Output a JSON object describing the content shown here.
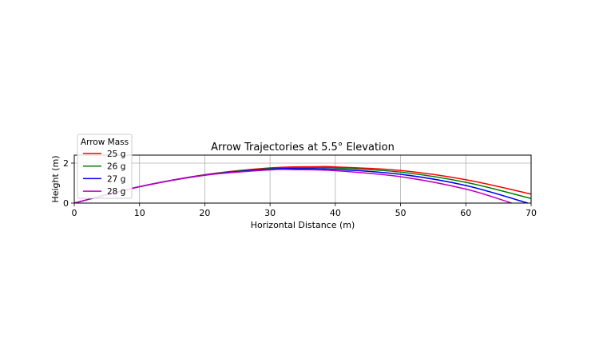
{
  "chart_data": {
    "type": "line",
    "title": "Arrow Trajectories at 5.5° Elevation",
    "xlabel": "Horizontal Distance (m)",
    "ylabel": "Height (m)",
    "xlim": [
      0,
      70
    ],
    "ylim": [
      0,
      2.4
    ],
    "xticks": [
      0,
      10,
      20,
      30,
      40,
      50,
      60,
      70
    ],
    "yticks": [
      0,
      2
    ],
    "grid": true,
    "legend": {
      "title": "Arrow Mass",
      "placement": "upper-left, outside axes"
    },
    "series": [
      {
        "name": "25 g",
        "color": "#ff0000",
        "x": [
          0,
          10,
          20,
          30,
          37,
          40,
          50,
          60,
          70
        ],
        "y": [
          0,
          0.82,
          1.42,
          1.76,
          1.82,
          1.81,
          1.63,
          1.17,
          0.45
        ]
      },
      {
        "name": "26 g",
        "color": "#008000",
        "x": [
          0,
          10,
          20,
          30,
          36,
          40,
          50,
          60,
          70
        ],
        "y": [
          0,
          0.82,
          1.41,
          1.73,
          1.77,
          1.76,
          1.55,
          1.04,
          0.23
        ]
      },
      {
        "name": "27 g",
        "color": "#0000ff",
        "x": [
          0,
          10,
          20,
          30,
          35,
          40,
          50,
          60,
          69.5
        ],
        "y": [
          0,
          0.82,
          1.4,
          1.7,
          1.72,
          1.69,
          1.44,
          0.88,
          0
        ]
      },
      {
        "name": "28 g",
        "color": "#bf00bf",
        "x": [
          0,
          10,
          20,
          30,
          34,
          40,
          50,
          60,
          67
        ],
        "y": [
          0,
          0.82,
          1.39,
          1.66,
          1.67,
          1.62,
          1.32,
          0.7,
          0
        ]
      }
    ]
  }
}
